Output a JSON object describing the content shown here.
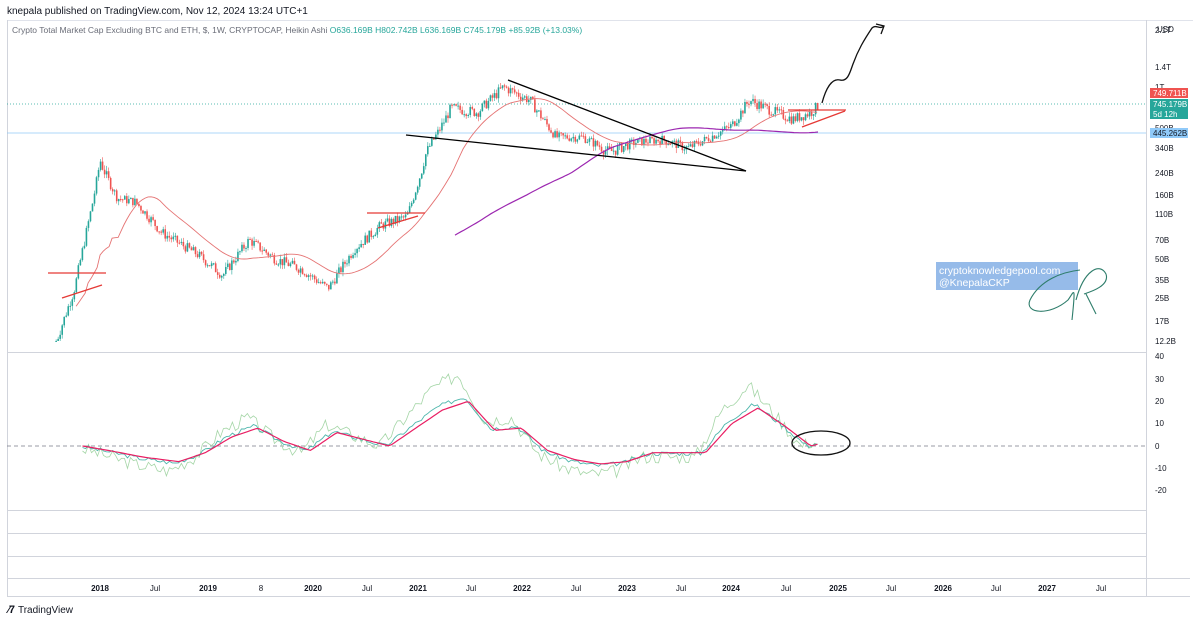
{
  "header": {
    "publisher": "knepala published on TradingView.com, Nov 12, 2024 13:24 UTC+1"
  },
  "legend": {
    "symbol": "Crypto Total Market Cap Excluding BTC and ETH, $, 1W, CRYPTOCAP, Heikin Ashi",
    "ohlc": "O636.169B  H802.742B  L636.169B  C745.179B  +85.92B (+13.03%)"
  },
  "axis": {
    "currency": "USD",
    "price_ticks": [
      "2.1T",
      "1.4T",
      "1T",
      "500B",
      "340B",
      "240B",
      "160B",
      "110B",
      "70B",
      "50B",
      "35B",
      "25B",
      "17B",
      "12.2B"
    ],
    "osc_ticks": [
      "40",
      "30",
      "20",
      "10",
      "0",
      "-10",
      "-20"
    ]
  },
  "badges": {
    "high": "749.711B",
    "close": "745.179B",
    "countdown": "5d 12h",
    "ma": "445.262B"
  },
  "watermark": {
    "line1": "cryptoknowledgepool.com",
    "line2": "@KnepalaCKP"
  },
  "footer": {
    "brand": "TradingView"
  },
  "colors": {
    "up": "#26a69a",
    "down": "#ef5350",
    "ma_pink": "#e57373",
    "ma_purple": "#9c27b0",
    "osc_red": "#e91e63",
    "osc_teal": "#4db6ac",
    "osc_light": "#a5d6a7",
    "badge_red": "#ef5350",
    "badge_teal": "#26a69a",
    "badge_blue": "#90caf9"
  },
  "chart_data": {
    "type": "candlestick",
    "y_scale": "log",
    "x_labels": [
      "2018",
      "Jul",
      "2019",
      "8",
      "2020",
      "Jul",
      "2021",
      "Jul",
      "2022",
      "Jul",
      "2023",
      "Jul",
      "2024",
      "Jul",
      "2025",
      "Jul",
      "2026",
      "Jul",
      "2027",
      "Jul"
    ],
    "price_series": {
      "dates": [
        "2017-08",
        "2017-10",
        "2017-12",
        "2018-01",
        "2018-03",
        "2018-05",
        "2018-08",
        "2018-12",
        "2019-03",
        "2019-06",
        "2019-09",
        "2019-12",
        "2020-03",
        "2020-06",
        "2020-09",
        "2020-12",
        "2021-02",
        "2021-05",
        "2021-08",
        "2021-11",
        "2022-02",
        "2022-05",
        "2022-08",
        "2022-11",
        "2023-02",
        "2023-05",
        "2023-08",
        "2023-10",
        "2024-01",
        "2024-03",
        "2024-06",
        "2024-08",
        "2024-10",
        "2024-11"
      ],
      "close_B": [
        12,
        28,
        120,
        290,
        150,
        140,
        80,
        55,
        38,
        70,
        50,
        42,
        30,
        60,
        90,
        105,
        300,
        700,
        650,
        1000,
        800,
        420,
        420,
        320,
        380,
        400,
        340,
        400,
        520,
        800,
        650,
        580,
        650,
        745
      ]
    },
    "oscillator": {
      "zero_line": 0,
      "range": [
        -25,
        40
      ],
      "dates": [
        "2017-11",
        "2018-02",
        "2018-06",
        "2018-10",
        "2019-01",
        "2019-04",
        "2019-07",
        "2019-10",
        "2020-01",
        "2020-04",
        "2020-07",
        "2020-10",
        "2021-01",
        "2021-04",
        "2021-07",
        "2021-10",
        "2022-01",
        "2022-04",
        "2022-07",
        "2022-10",
        "2023-01",
        "2023-04",
        "2023-07",
        "2023-10",
        "2024-01",
        "2024-04",
        "2024-07",
        "2024-10",
        "2024-11"
      ],
      "values": [
        0,
        -2,
        -5,
        -7,
        -3,
        4,
        8,
        2,
        -2,
        6,
        3,
        0,
        8,
        16,
        20,
        7,
        8,
        -2,
        -6,
        -8,
        -7,
        -3,
        -3,
        -3,
        10,
        17,
        9,
        0,
        1
      ]
    }
  }
}
